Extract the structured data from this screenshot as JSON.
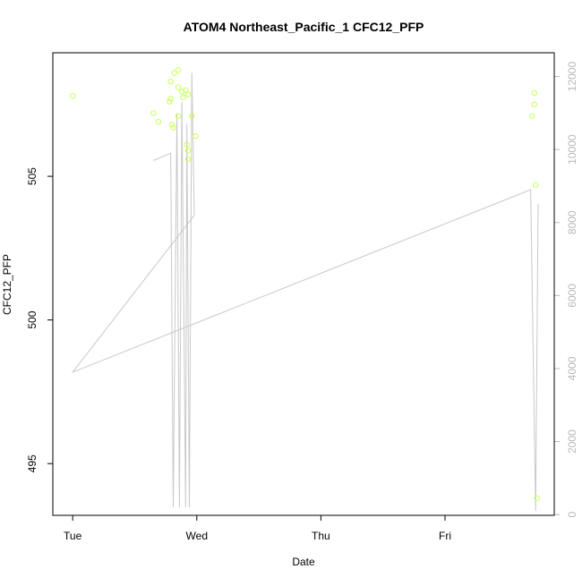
{
  "chart_data": {
    "type": "scatter",
    "title": "ATOM4 Northeast_Pacific_1 CFC12_PFP",
    "xlabel": "Date",
    "ylabel": "CFC12_PFP",
    "x_ticks": [
      "Tue",
      "Wed",
      "Thu",
      "Fri"
    ],
    "x_tick_values": [
      0,
      1,
      2,
      3
    ],
    "xlim": [
      -0.16,
      3.88
    ],
    "y_left": {
      "ticks": [
        495,
        500,
        505
      ],
      "ylim": [
        493.2,
        509.3
      ]
    },
    "y_right": {
      "ticks": [
        0,
        2000,
        4000,
        6000,
        8000,
        10000,
        12000
      ],
      "ylim": [
        -20,
        12650
      ]
    },
    "grid": false,
    "legend": "none",
    "series": [
      {
        "axis": "left",
        "color": "#c8ff5a",
        "points": [
          {
            "x": 0.0,
            "y": 507.8
          },
          {
            "x": 0.65,
            "y": 507.2
          },
          {
            "x": 0.69,
            "y": 506.9
          },
          {
            "x": 0.78,
            "y": 507.6
          },
          {
            "x": 0.79,
            "y": 507.7
          },
          {
            "x": 0.79,
            "y": 508.3
          },
          {
            "x": 0.8,
            "y": 506.8
          },
          {
            "x": 0.81,
            "y": 506.7
          },
          {
            "x": 0.82,
            "y": 508.6
          },
          {
            "x": 0.85,
            "y": 508.7
          },
          {
            "x": 0.85,
            "y": 508.1
          },
          {
            "x": 0.85,
            "y": 507.1
          },
          {
            "x": 0.88,
            "y": 507.95
          },
          {
            "x": 0.89,
            "y": 507.75
          },
          {
            "x": 0.91,
            "y": 508.0
          },
          {
            "x": 0.92,
            "y": 506.1
          },
          {
            "x": 0.93,
            "y": 507.85
          },
          {
            "x": 0.93,
            "y": 505.9
          },
          {
            "x": 0.93,
            "y": 505.6
          },
          {
            "x": 0.96,
            "y": 507.1
          },
          {
            "x": 0.99,
            "y": 506.4
          },
          {
            "x": 3.7,
            "y": 507.1
          },
          {
            "x": 3.72,
            "y": 507.9
          },
          {
            "x": 3.72,
            "y": 507.5
          },
          {
            "x": 3.73,
            "y": 504.7
          },
          {
            "x": 3.74,
            "y": 493.8
          }
        ]
      },
      {
        "axis": "right",
        "color": "#c8c8c8",
        "points": [
          {
            "x": 0.65,
            "y": 9700
          },
          {
            "x": 0.79,
            "y": 9900
          },
          {
            "x": 0.81,
            "y": 200
          },
          {
            "x": 0.84,
            "y": 11000
          },
          {
            "x": 0.86,
            "y": 200
          },
          {
            "x": 0.88,
            "y": 11300
          },
          {
            "x": 0.91,
            "y": 200
          },
          {
            "x": 0.92,
            "y": 10700
          },
          {
            "x": 0.94,
            "y": 200
          },
          {
            "x": 0.96,
            "y": 12100
          },
          {
            "x": 0.98,
            "y": 8200
          },
          {
            "x": 0.0,
            "y": 3900
          },
          {
            "x": 3.69,
            "y": 8900
          },
          {
            "x": 3.73,
            "y": 100
          },
          {
            "x": 3.75,
            "y": 8500
          }
        ]
      }
    ]
  }
}
